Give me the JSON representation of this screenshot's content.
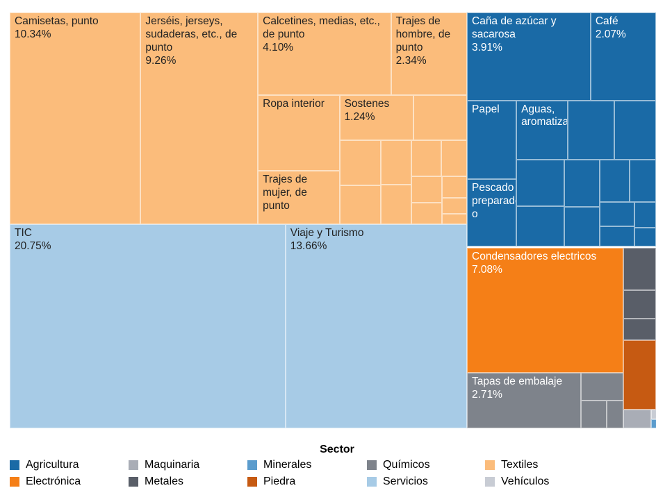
{
  "chart_data": {
    "type": "treemap",
    "legend_title": "Sector",
    "series": [
      {
        "name": "Agricultura",
        "color": "#1a6aa6",
        "labels": [
          "Caña de azúcar y sacarosa",
          "Café",
          "Papel",
          "Pescado preparado o",
          "Aguas, aromatizadas",
          null,
          null,
          null,
          null,
          null,
          null,
          null,
          null,
          null,
          null,
          null,
          null
        ],
        "values": [
          3.91,
          2.07,
          1.4,
          1.2,
          1.1,
          1.0,
          0.9,
          0.8,
          0.7,
          0.6,
          0.5,
          0.45,
          0.4,
          0.3,
          0.25,
          0.2,
          0.15
        ],
        "value_labels": [
          "3.91%",
          "2.07%",
          null,
          null,
          null,
          null,
          null,
          null,
          null,
          null,
          null,
          null,
          null,
          null,
          null,
          null,
          null
        ]
      },
      {
        "name": "Electrónica",
        "color": "#f57f17",
        "labels": [
          "Condensadores electricos"
        ],
        "values": [
          7.08
        ],
        "value_labels": [
          "7.08%"
        ]
      },
      {
        "name": "Maquinaria",
        "color": "#a9adb6",
        "labels": [
          null
        ],
        "values": [
          0.3
        ],
        "value_labels": [
          null
        ]
      },
      {
        "name": "Metales",
        "color": "#595e68",
        "labels": [
          null,
          null,
          null
        ],
        "values": [
          0.6,
          0.4,
          0.3
        ],
        "value_labels": [
          null,
          null,
          null
        ]
      },
      {
        "name": "Minerales",
        "color": "#5b9ccd",
        "labels": [
          null
        ],
        "values": [
          0.15
        ],
        "value_labels": [
          null
        ]
      },
      {
        "name": "Piedra",
        "color": "#c65a12",
        "labels": [
          null
        ],
        "values": [
          0.8
        ],
        "value_labels": [
          null
        ]
      },
      {
        "name": "Químicos",
        "color": "#7e838b",
        "labels": [
          "Tapas de embalaje",
          null,
          null,
          null
        ],
        "values": [
          2.71,
          0.5,
          0.3,
          0.2
        ],
        "value_labels": [
          "2.71%",
          null,
          null,
          null
        ]
      },
      {
        "name": "Servicios",
        "color": "#a7cbe6",
        "labels": [
          "TIC",
          "Viaje y Turismo"
        ],
        "values": [
          20.75,
          13.66
        ],
        "value_labels": [
          "20.75%",
          "13.66%"
        ]
      },
      {
        "name": "Textiles",
        "color": "#fbbc7b",
        "labels": [
          "Camisetas, punto",
          "Jerséis, jerseys, sudaderas, etc., de punto",
          "Calcetines, medias, etc., de punto",
          "Trajes de hombre, de punto",
          "Ropa interior",
          "Trajes de mujer, de punto",
          "Sostenes",
          null,
          null,
          null,
          null,
          null,
          null,
          null,
          null,
          null,
          null,
          null,
          null
        ],
        "values": [
          10.34,
          9.26,
          4.1,
          2.34,
          2.3,
          1.63,
          1.24,
          0.9,
          0.7,
          0.6,
          0.5,
          0.45,
          0.4,
          0.35,
          0.3,
          0.25,
          0.2,
          0.15,
          0.1
        ],
        "value_labels": [
          "10.34%",
          "9.26%",
          "4.10%",
          "2.34%",
          null,
          null,
          "1.24%",
          null,
          null,
          null,
          null,
          null,
          null,
          null,
          null,
          null,
          null,
          null,
          null
        ]
      },
      {
        "name": "Vehículos",
        "color": "#c8ccd4",
        "labels": [
          null
        ],
        "values": [
          0.1
        ],
        "value_labels": [
          null
        ]
      }
    ]
  }
}
